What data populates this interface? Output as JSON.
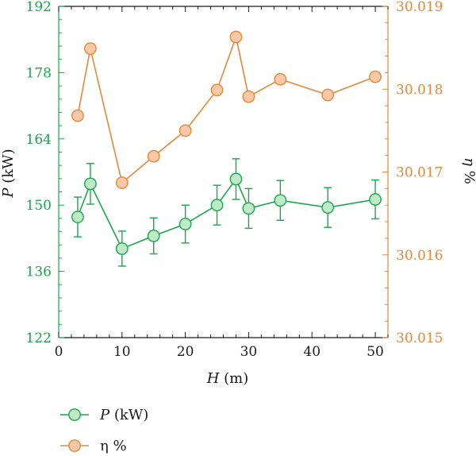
{
  "chart_data": {
    "type": "line",
    "xlabel_var": "H",
    "xlabel_unit": " (m)",
    "ylabel_left_var": "P",
    "ylabel_left_unit": " (kW)",
    "ylabel_right_var": "η",
    "ylabel_right_unit": " %",
    "xlim": [
      0,
      52
    ],
    "xticks": [
      0,
      10,
      20,
      30,
      40,
      50
    ],
    "ylim_left": [
      122,
      192
    ],
    "yticks_left": [
      122,
      136,
      150,
      164,
      178,
      192
    ],
    "ylim_right": [
      30.015,
      30.019
    ],
    "yticks_right": [
      "30.015",
      "30.016",
      "30.017",
      "30.018",
      "30.019"
    ],
    "grid": false,
    "legend_position": "bottom-left",
    "colors": {
      "p_line": "#1aa64e",
      "p_fill": "#bfe9c7",
      "eta_line": "#e08a3c",
      "eta_fill": "#fbc9a9",
      "axis": "#1a1a1a"
    },
    "series": [
      {
        "key": "p",
        "name_var": "P",
        "name_unit": " (kW)",
        "axis": "left",
        "x": [
          3,
          5,
          10,
          15,
          20,
          25,
          28,
          30,
          35,
          42.5,
          50
        ],
        "y": [
          147.5,
          154.5,
          140.8,
          143.5,
          146,
          150,
          155.5,
          149.3,
          151,
          149.5,
          151.2
        ],
        "err": [
          4.2,
          4.3,
          3.7,
          3.8,
          4.0,
          4.2,
          4.3,
          4.2,
          4.2,
          4.2,
          4.1
        ]
      },
      {
        "key": "eta",
        "name": "η %",
        "axis": "right",
        "x": [
          3,
          5,
          10,
          15,
          20,
          25,
          28,
          30,
          35,
          42.5,
          50
        ],
        "y": [
          30.01768,
          30.01849,
          30.01687,
          30.01719,
          30.0175,
          30.01799,
          30.01863,
          30.01791,
          30.01812,
          30.01793,
          30.01815
        ]
      }
    ]
  }
}
